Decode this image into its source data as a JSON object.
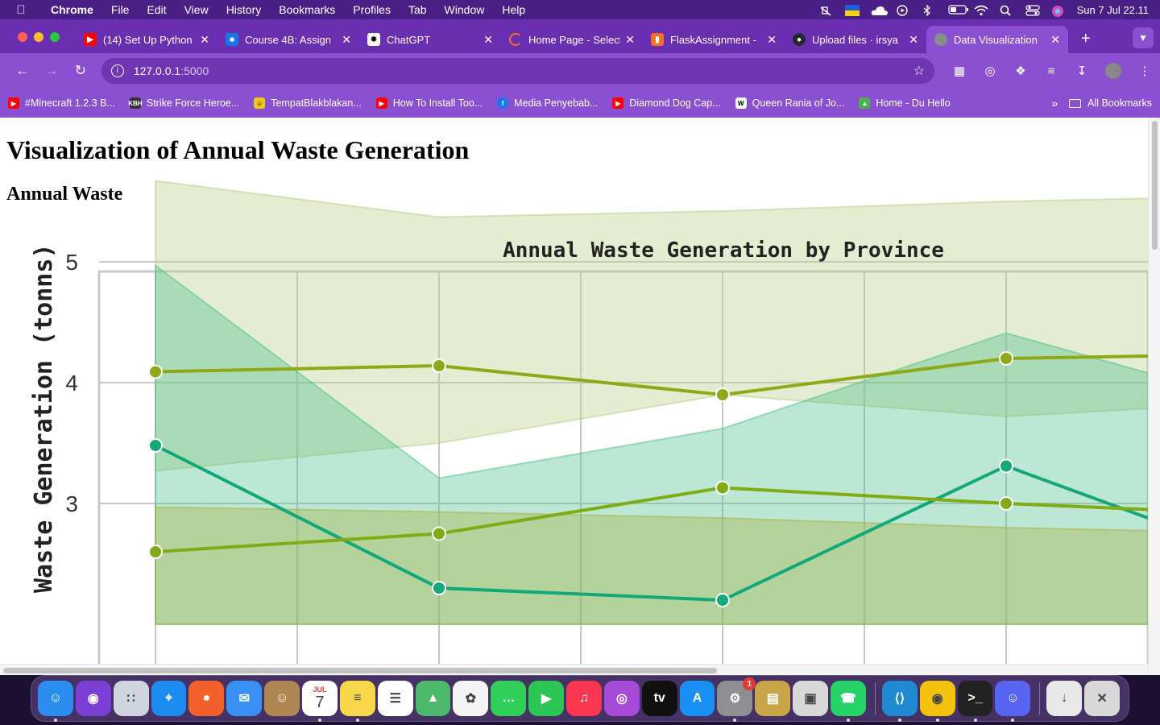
{
  "menubar": {
    "app_name": "Chrome",
    "items": [
      "File",
      "Edit",
      "View",
      "History",
      "Bookmarks",
      "Profiles",
      "Tab",
      "Window",
      "Help"
    ],
    "clock": "Sun 7 Jul  22.11"
  },
  "tabs": [
    {
      "title": "(14) Set Up Python",
      "favicon_color": "#ff0000",
      "favicon": "youtube-icon"
    },
    {
      "title": "Course 4B: Assign",
      "favicon_color": "#1a73e8",
      "favicon": "classroom-icon"
    },
    {
      "title": "ChatGPT",
      "favicon_color": "#ffffff",
      "favicon": "openai-icon"
    },
    {
      "title": "Home Page - Select",
      "favicon_color": "#f36f21",
      "favicon": "loading-icon"
    },
    {
      "title": "FlaskAssignment -",
      "favicon_color": "#f36f21",
      "favicon": "book-icon"
    },
    {
      "title": "Upload files · irsya",
      "favicon_color": "#24292e",
      "favicon": "github-icon"
    },
    {
      "title": "Data Visualization",
      "favicon_color": "#8a8a8a",
      "favicon": "globe-icon",
      "active": true
    }
  ],
  "toolbar": {
    "url_host": "127.0.0.1",
    "url_port": ":5000"
  },
  "bookmarks": [
    {
      "label": "#Minecraft 1.2.3 B...",
      "color": "#ff0000"
    },
    {
      "label": "Strike Force Heroe...",
      "color": "#333333",
      "tag": "KBH"
    },
    {
      "label": "TempatBlakblakan...",
      "color": "#f5c518"
    },
    {
      "label": "How To Install Too...",
      "color": "#ff0000"
    },
    {
      "label": "Media Penyebab...",
      "color": "#1877f2",
      "tag": "f"
    },
    {
      "label": "Diamond Dog Cap...",
      "color": "#ff0000"
    },
    {
      "label": "Queen Rania of Jo...",
      "color": "#ffffff",
      "tag": "W"
    },
    {
      "label": "Home - Du Hello",
      "color": "#4caf50"
    }
  ],
  "bookmarks_all": "All Bookmarks",
  "page": {
    "heading": "Visualization of Annual Waste Generation",
    "subheading": "Annual Waste"
  },
  "chart_data": {
    "type": "line",
    "title": "Annual Waste Generation by Province",
    "ylabel": "Waste Generation (tonns)",
    "y_ticks": [
      3,
      4,
      5
    ],
    "ylim": [
      2.3,
      5.9
    ],
    "x_index": [
      0,
      1,
      2,
      3,
      4,
      5,
      6,
      7
    ],
    "grid": true,
    "series": [
      {
        "color": "#8fa817",
        "values": [
          4.09,
          null,
          4.14,
          null,
          3.9,
          null,
          4.2,
          4.22
        ]
      },
      {
        "color": "#12a87a",
        "values": [
          3.48,
          null,
          2.3,
          null,
          2.2,
          null,
          3.31,
          2.88
        ]
      },
      {
        "color": "#7fab15",
        "values": [
          2.6,
          null,
          2.75,
          null,
          3.13,
          null,
          3.0,
          2.95
        ]
      }
    ],
    "bands": [
      {
        "color": "#b9cc85",
        "upper": [
          5.67,
          5.37,
          5.42,
          5.5,
          5.55
        ],
        "lower": [
          3.27,
          3.5,
          3.9,
          3.72,
          3.85
        ]
      },
      {
        "color": "#4cc08e",
        "upper": [
          4.97,
          3.21,
          3.62,
          4.41,
          3.75
        ],
        "lower": [
          2.0,
          2.0,
          2.0,
          2.0,
          2.0
        ]
      },
      {
        "color": "#a8b040",
        "upper": [
          2.97,
          2.93,
          2.88,
          2.8,
          2.75
        ],
        "lower": [
          2.0,
          2.0,
          2.0,
          2.0,
          2.0
        ]
      }
    ]
  },
  "dock": [
    {
      "name": "finder-icon",
      "color": "#2b8df0"
    },
    {
      "name": "siri-icon",
      "color": "#7b3fd6"
    },
    {
      "name": "launchpad-icon",
      "color": "#d0d4de"
    },
    {
      "name": "safari-icon",
      "color": "#1d8bf0"
    },
    {
      "name": "firefox-icon",
      "color": "#f2612b"
    },
    {
      "name": "mail-icon",
      "color": "#3a8ff5"
    },
    {
      "name": "contacts-icon",
      "color": "#b08654"
    },
    {
      "name": "calendar-icon",
      "color": "#ffffff"
    },
    {
      "name": "notes-icon",
      "color": "#f8d64a"
    },
    {
      "name": "reminders-icon",
      "color": "#ffffff"
    },
    {
      "name": "maps-icon",
      "color": "#4cb86b"
    },
    {
      "name": "photos-icon",
      "color": "#f4f4f4"
    },
    {
      "name": "messages-icon",
      "color": "#2fcf5a"
    },
    {
      "name": "facetime-icon",
      "color": "#2bc553"
    },
    {
      "name": "music-icon",
      "color": "#fa3550"
    },
    {
      "name": "podcasts-icon",
      "color": "#a64ad8"
    },
    {
      "name": "appletv-icon",
      "color": "#111111"
    },
    {
      "name": "appstore-icon",
      "color": "#1a8ff3"
    },
    {
      "name": "settings-icon",
      "color": "#8e8e93"
    },
    {
      "name": "archive-icon",
      "color": "#c9a54a"
    },
    {
      "name": "roblox-icon",
      "color": "#d8d8d8"
    },
    {
      "name": "whatsapp-icon",
      "color": "#25d366"
    },
    {
      "name": "vscode-icon",
      "color": "#1f8ad2"
    },
    {
      "name": "chrome-icon",
      "color": "#f4c20d"
    },
    {
      "name": "terminal-icon",
      "color": "#222222"
    },
    {
      "name": "discord-icon",
      "color": "#5865f2"
    },
    {
      "name": "downloads-icon",
      "color": "#e8e8e8"
    },
    {
      "name": "trash-icon",
      "color": "#d8d8d8"
    }
  ],
  "dock_badge": "1",
  "calendar": {
    "month": "JUL",
    "day": "7"
  }
}
